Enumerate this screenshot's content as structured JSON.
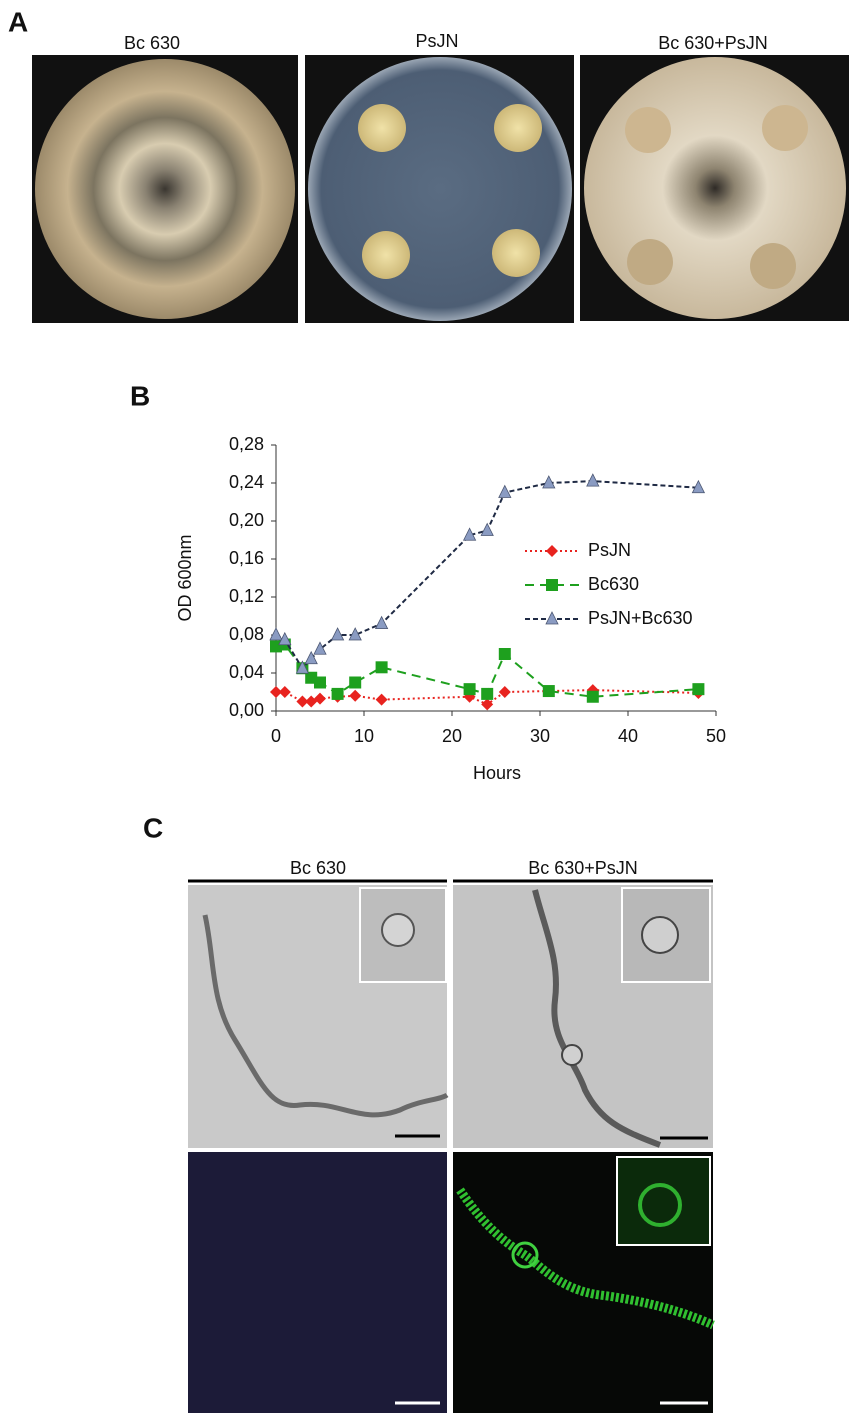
{
  "panel_a": {
    "label": "A",
    "images": [
      "Bc 630",
      "PsJN",
      "Bc 630+PsJN"
    ]
  },
  "panel_b": {
    "label": "B"
  },
  "chart_data": {
    "type": "line",
    "x_label": "Hours",
    "y_label": "OD 600nm",
    "xlim": [
      0,
      50
    ],
    "xticks": [
      0,
      10,
      20,
      30,
      40,
      50
    ],
    "ylim": [
      0,
      0.28
    ],
    "yticks": [
      {
        "value": 0,
        "label": "0,00"
      },
      {
        "value": 0.04,
        "label": "0,04"
      },
      {
        "value": 0.08,
        "label": "0,08"
      },
      {
        "value": 0.12,
        "label": "0,12"
      },
      {
        "value": 0.16,
        "label": "0,16"
      },
      {
        "value": 0.2,
        "label": "0,20"
      },
      {
        "value": 0.24,
        "label": "0,24"
      },
      {
        "value": 0.28,
        "label": "0,28"
      }
    ],
    "grid": false,
    "legend": "right",
    "series": [
      {
        "name": "PsJN",
        "color": "#e8231f",
        "line_color": "#e8231f",
        "dash": "2,3",
        "marker": "diamond",
        "x": [
          0,
          1,
          3,
          4,
          5,
          7,
          9,
          12,
          22,
          24,
          26,
          36,
          48
        ],
        "values": [
          0.02,
          0.02,
          0.01,
          0.01,
          0.013,
          0.015,
          0.016,
          0.012,
          0.015,
          0.007,
          0.02,
          0.022,
          0.019
        ]
      },
      {
        "name": "Bc630",
        "color": "#1ea01e",
        "line_color": "#1ea01e",
        "dash": "9,6",
        "marker": "square",
        "x": [
          0,
          1,
          3,
          4,
          5,
          7,
          9,
          12,
          22,
          24,
          26,
          31,
          36,
          48
        ],
        "values": [
          0.068,
          0.07,
          0.045,
          0.035,
          0.03,
          0.018,
          0.03,
          0.046,
          0.023,
          0.018,
          0.06,
          0.021,
          0.015,
          0.023
        ]
      },
      {
        "name": "PsJN+Bc630",
        "color": "#8a9bc2",
        "line_color": "#1f2a44",
        "dash": "5,3",
        "marker": "triangle",
        "x": [
          0,
          1,
          3,
          4,
          5,
          7,
          9,
          12,
          22,
          24,
          26,
          31,
          36,
          48
        ],
        "values": [
          0.08,
          0.075,
          0.045,
          0.055,
          0.065,
          0.08,
          0.08,
          0.092,
          0.185,
          0.19,
          0.23,
          0.24,
          0.242,
          0.235
        ]
      }
    ]
  },
  "panel_c": {
    "label": "C",
    "columns": [
      "Bc 630",
      "Bc 630+PsJN"
    ]
  }
}
